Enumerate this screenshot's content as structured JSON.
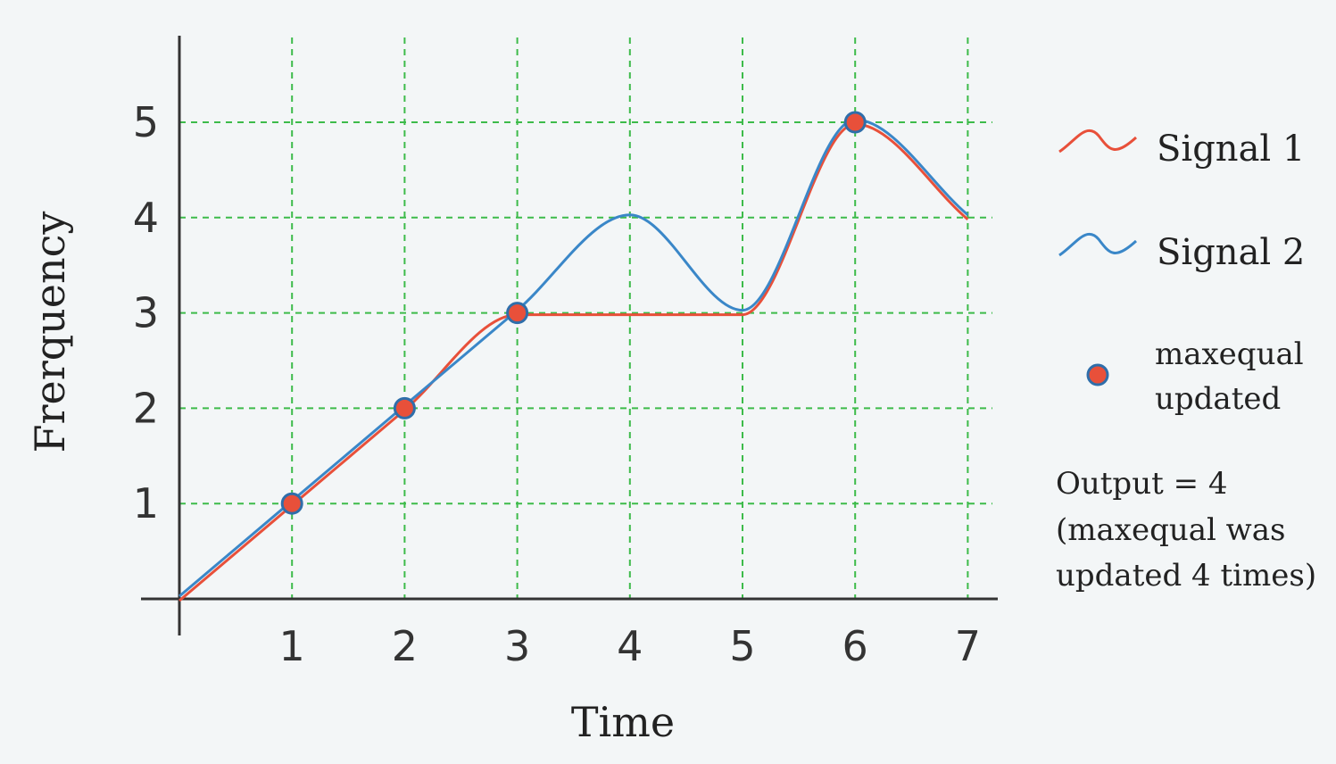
{
  "chart_data": {
    "type": "line",
    "xlabel": "Time",
    "ylabel": "Frerquency",
    "xlim": [
      0,
      7
    ],
    "ylim": [
      0,
      5
    ],
    "xticks": [
      "1",
      "2",
      "3",
      "4",
      "5",
      "6",
      "7"
    ],
    "yticks": [
      "1",
      "2",
      "3",
      "4",
      "5"
    ],
    "grid": true,
    "legend_position": "right",
    "series": [
      {
        "name": "Signal 1",
        "color": "#e8503a",
        "x": [
          0,
          1,
          2,
          3,
          4,
          5,
          6,
          7
        ],
        "y": [
          0,
          1,
          2,
          3,
          3,
          3,
          5,
          4
        ]
      },
      {
        "name": "Signal 2",
        "color": "#3a87c8",
        "x": [
          0,
          1,
          2,
          3,
          4,
          5,
          6,
          7
        ],
        "y": [
          0,
          1,
          2,
          3,
          4,
          3,
          5,
          4
        ]
      }
    ],
    "markers": {
      "name": "maxequal updated",
      "label_lines": [
        "maxequal",
        "updated"
      ],
      "fill": "#e8503a",
      "stroke": "#2f6eaa",
      "x": [
        1,
        2,
        3,
        6
      ],
      "y": [
        1,
        2,
        3,
        5
      ]
    },
    "annotation": {
      "lines": [
        "Output = 4",
        "(maxequal was",
        "updated 4 times)"
      ]
    },
    "colors": {
      "grid": "#3dbb4a",
      "axis": "#333333",
      "background": "#f3f6f7"
    }
  }
}
